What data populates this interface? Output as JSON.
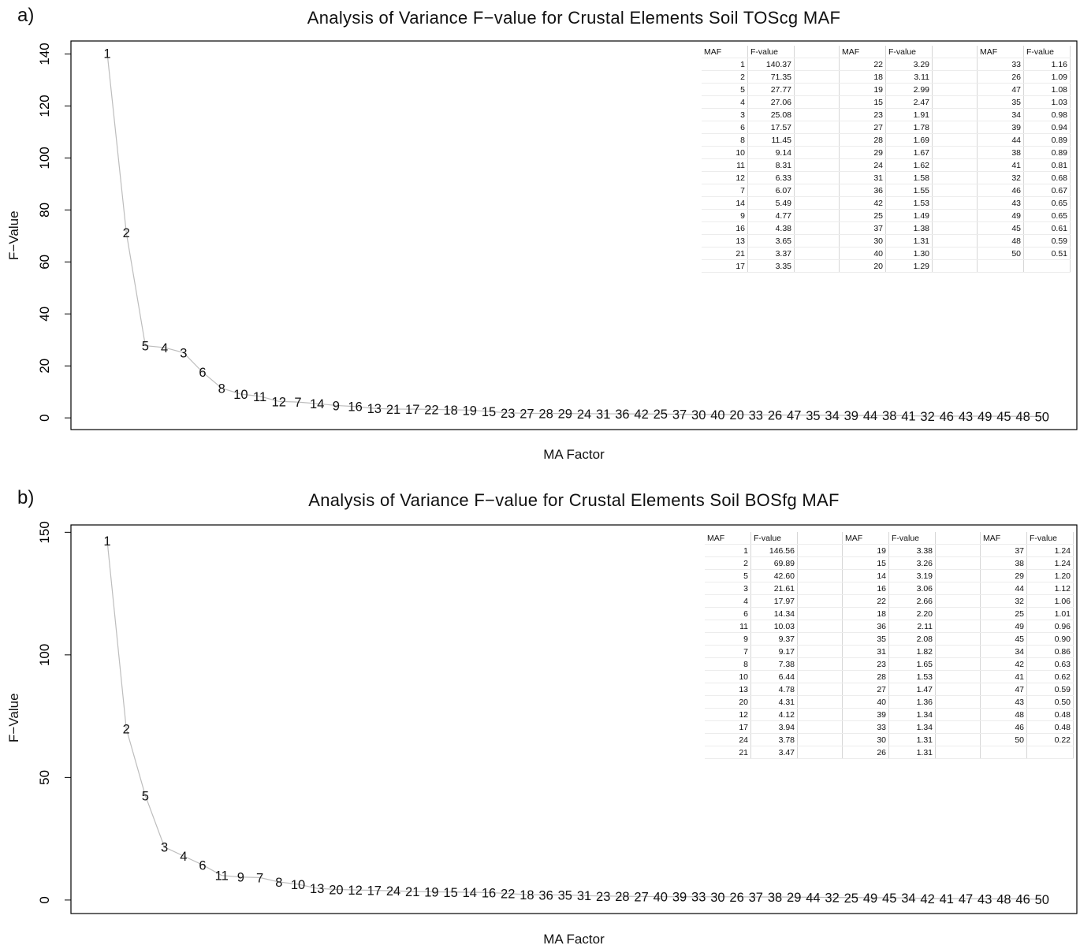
{
  "chart_data": [
    {
      "panel_label": "a)",
      "type": "line",
      "title": "Analysis of Variance F−value for Crustal Elements Soil TOScg  MAF",
      "xlabel": "MA Factor",
      "ylabel": "F−Value",
      "yticks": [
        "0",
        "20",
        "40",
        "60",
        "80",
        "100",
        "120",
        "140"
      ],
      "ytick_values": [
        0,
        20,
        40,
        60,
        80,
        100,
        120,
        140
      ],
      "ylim": [
        -4.5,
        145
      ],
      "line_color": "#bdbdbd",
      "x": [
        "1",
        "2",
        "5",
        "4",
        "3",
        "6",
        "8",
        "10",
        "11",
        "12",
        "7",
        "14",
        "9",
        "16",
        "13",
        "21",
        "17",
        "22",
        "18",
        "19",
        "15",
        "23",
        "27",
        "28",
        "29",
        "24",
        "31",
        "36",
        "42",
        "25",
        "37",
        "30",
        "40",
        "20",
        "33",
        "26",
        "47",
        "35",
        "34",
        "39",
        "44",
        "38",
        "41",
        "32",
        "46",
        "43",
        "49",
        "45",
        "48",
        "50"
      ],
      "values": [
        140.37,
        71.35,
        27.77,
        27.06,
        25.08,
        17.57,
        11.45,
        9.14,
        8.31,
        6.33,
        6.07,
        5.49,
        4.77,
        4.38,
        3.65,
        3.37,
        3.35,
        3.29,
        3.11,
        2.99,
        2.47,
        1.91,
        1.78,
        1.69,
        1.67,
        1.62,
        1.58,
        1.55,
        1.53,
        1.49,
        1.38,
        1.31,
        1.3,
        1.29,
        1.16,
        1.09,
        1.08,
        1.03,
        0.98,
        0.94,
        0.89,
        0.89,
        0.81,
        0.68,
        0.67,
        0.65,
        0.65,
        0.61,
        0.59,
        0.51
      ],
      "table": {
        "header": [
          "MAF",
          "F-value"
        ],
        "columns": [
          {
            "maf": [
              "1",
              "2",
              "5",
              "4",
              "3",
              "6",
              "8",
              "10",
              "11",
              "12",
              "7",
              "14",
              "9",
              "16",
              "13",
              "21",
              "17"
            ],
            "fvalue": [
              "140.37",
              "71.35",
              "27.77",
              "27.06",
              "25.08",
              "17.57",
              "11.45",
              "9.14",
              "8.31",
              "6.33",
              "6.07",
              "5.49",
              "4.77",
              "4.38",
              "3.65",
              "3.37",
              "3.35"
            ]
          },
          {
            "maf": [
              "22",
              "18",
              "19",
              "15",
              "23",
              "27",
              "28",
              "29",
              "24",
              "31",
              "36",
              "42",
              "25",
              "37",
              "30",
              "40",
              "20"
            ],
            "fvalue": [
              "3.29",
              "3.11",
              "2.99",
              "2.47",
              "1.91",
              "1.78",
              "1.69",
              "1.67",
              "1.62",
              "1.58",
              "1.55",
              "1.53",
              "1.49",
              "1.38",
              "1.31",
              "1.30",
              "1.29"
            ]
          },
          {
            "maf": [
              "33",
              "26",
              "47",
              "35",
              "34",
              "39",
              "44",
              "38",
              "41",
              "32",
              "46",
              "43",
              "49",
              "45",
              "48",
              "50"
            ],
            "fvalue": [
              "1.16",
              "1.09",
              "1.08",
              "1.03",
              "0.98",
              "0.94",
              "0.89",
              "0.89",
              "0.81",
              "0.68",
              "0.67",
              "0.65",
              "0.65",
              "0.61",
              "0.59",
              "0.51"
            ]
          }
        ]
      }
    },
    {
      "panel_label": "b)",
      "type": "line",
      "title": "Analysis of Variance F−value for Crustal Elements Soil BOSfg  MAF",
      "xlabel": "MA Factor",
      "ylabel": "F−Value",
      "yticks": [
        "0",
        "50",
        "100",
        "150"
      ],
      "ytick_values": [
        0,
        50,
        100,
        150
      ],
      "ylim": [
        -5.5,
        153
      ],
      "line_color": "#bdbdbd",
      "x": [
        "1",
        "2",
        "5",
        "3",
        "4",
        "6",
        "11",
        "9",
        "7",
        "8",
        "10",
        "13",
        "20",
        "12",
        "17",
        "24",
        "21",
        "19",
        "15",
        "14",
        "16",
        "22",
        "18",
        "36",
        "35",
        "31",
        "23",
        "28",
        "27",
        "40",
        "39",
        "33",
        "30",
        "26",
        "37",
        "38",
        "29",
        "44",
        "32",
        "25",
        "49",
        "45",
        "34",
        "42",
        "41",
        "47",
        "43",
        "48",
        "46",
        "50"
      ],
      "values": [
        146.56,
        69.89,
        42.6,
        21.61,
        17.97,
        14.34,
        10.03,
        9.37,
        9.17,
        7.38,
        6.44,
        4.78,
        4.31,
        4.12,
        3.94,
        3.78,
        3.47,
        3.38,
        3.26,
        3.19,
        3.06,
        2.66,
        2.2,
        2.11,
        2.08,
        1.82,
        1.65,
        1.53,
        1.47,
        1.36,
        1.34,
        1.34,
        1.31,
        1.31,
        1.24,
        1.24,
        1.2,
        1.12,
        1.06,
        1.01,
        0.96,
        0.9,
        0.86,
        0.63,
        0.62,
        0.59,
        0.5,
        0.48,
        0.48,
        0.22
      ],
      "table": {
        "header": [
          "MAF",
          "F-value"
        ],
        "columns": [
          {
            "maf": [
              "1",
              "2",
              "5",
              "3",
              "4",
              "6",
              "11",
              "9",
              "7",
              "8",
              "10",
              "13",
              "20",
              "12",
              "17",
              "24",
              "21"
            ],
            "fvalue": [
              "146.56",
              "69.89",
              "42.60",
              "21.61",
              "17.97",
              "14.34",
              "10.03",
              "9.37",
              "9.17",
              "7.38",
              "6.44",
              "4.78",
              "4.31",
              "4.12",
              "3.94",
              "3.78",
              "3.47"
            ]
          },
          {
            "maf": [
              "19",
              "15",
              "14",
              "16",
              "22",
              "18",
              "36",
              "35",
              "31",
              "23",
              "28",
              "27",
              "40",
              "39",
              "33",
              "30",
              "26"
            ],
            "fvalue": [
              "3.38",
              "3.26",
              "3.19",
              "3.06",
              "2.66",
              "2.20",
              "2.11",
              "2.08",
              "1.82",
              "1.65",
              "1.53",
              "1.47",
              "1.36",
              "1.34",
              "1.34",
              "1.31",
              "1.31"
            ]
          },
          {
            "maf": [
              "37",
              "38",
              "29",
              "44",
              "32",
              "25",
              "49",
              "45",
              "34",
              "42",
              "41",
              "47",
              "43",
              "48",
              "46",
              "50"
            ],
            "fvalue": [
              "1.24",
              "1.24",
              "1.20",
              "1.12",
              "1.06",
              "1.01",
              "0.96",
              "0.90",
              "0.86",
              "0.63",
              "0.62",
              "0.59",
              "0.50",
              "0.48",
              "0.48",
              "0.22"
            ]
          }
        ]
      }
    }
  ]
}
